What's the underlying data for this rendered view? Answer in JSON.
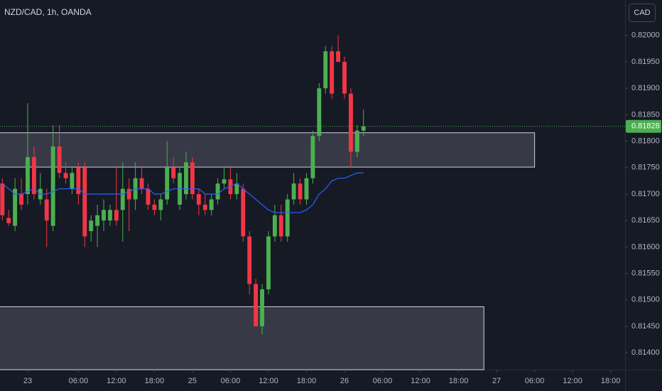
{
  "chart_data": {
    "type": "candlestick",
    "title": "NZD/CAD, 1h, OANDA",
    "currency": "CAD",
    "x": [
      -4,
      -3,
      -2,
      -1,
      0,
      1,
      2,
      3,
      4,
      5,
      6,
      7,
      8,
      9,
      10,
      11,
      12,
      13,
      14,
      15,
      16,
      17,
      18,
      19,
      20,
      21,
      22,
      23,
      24,
      25,
      26,
      27,
      28,
      29,
      30,
      31,
      32,
      33,
      34,
      35,
      36,
      37,
      38,
      39,
      40,
      41,
      42,
      43,
      44,
      45,
      46,
      47,
      48,
      49,
      50,
      51,
      52,
      53
    ],
    "open": [
      0.8172,
      0.81655,
      0.8164,
      0.817,
      0.817,
      0.8177,
      0.8169,
      0.8169,
      0.8164,
      0.8179,
      0.8174,
      0.8171,
      0.8175,
      0.8175,
      0.8163,
      0.8164,
      0.8165,
      0.8165,
      0.8167,
      0.8167,
      0.8171,
      0.8169,
      0.8173,
      0.8171,
      0.8168,
      0.8167,
      0.8169,
      0.8175,
      0.8168,
      0.817,
      0.8176,
      0.817,
      0.8168,
      0.8167,
      0.8169,
      0.8172,
      0.81728,
      0.817,
      0.8171,
      0.8162,
      0.8153,
      0.8145,
      0.8152,
      0.8162,
      0.8166,
      0.8162,
      0.8169,
      0.8172,
      0.8169,
      0.8173,
      0.8181,
      0.819,
      0.8197,
      0.8197,
      0.8195,
      0.8189,
      0.8178,
      0.8182
    ],
    "high": [
      0.8173,
      0.8167,
      0.8173,
      0.8173,
      0.81872,
      0.8179,
      0.8174,
      0.8171,
      0.8183,
      0.8183,
      0.8176,
      0.8175,
      0.8176,
      0.8176,
      0.8166,
      0.8168,
      0.8169,
      0.8168,
      0.8175,
      0.8176,
      0.8173,
      0.8176,
      0.8175,
      0.8172,
      0.8169,
      0.817,
      0.818,
      0.8177,
      0.8175,
      0.8178,
      0.8177,
      0.8171,
      0.817,
      0.817,
      0.8173,
      0.8175,
      0.8175,
      0.8174,
      0.8172,
      0.8163,
      0.8154,
      0.8153,
      0.8163,
      0.8168,
      0.8168,
      0.817,
      0.8174,
      0.8173,
      0.8174,
      0.8182,
      0.8191,
      0.8198,
      0.8198,
      0.82,
      0.8196,
      0.819,
      0.8183,
      0.8186
    ],
    "low": [
      0.8165,
      0.8164,
      0.8163,
      0.8167,
      0.8168,
      0.8169,
      0.8168,
      0.816,
      0.8163,
      0.8173,
      0.8172,
      0.817,
      0.8168,
      0.816,
      0.8161,
      0.816,
      0.8163,
      0.8164,
      0.8164,
      0.8161,
      0.8163,
      0.8167,
      0.817,
      0.8167,
      0.8166,
      0.8165,
      0.8168,
      0.8172,
      0.8167,
      0.8169,
      0.8169,
      0.8166,
      0.8166,
      0.8166,
      0.8168,
      0.8171,
      0.8169,
      0.8169,
      0.8161,
      0.8151,
      0.8145,
      0.81435,
      0.8151,
      0.8161,
      0.8161,
      0.8161,
      0.8168,
      0.8168,
      0.8168,
      0.8172,
      0.818,
      0.8189,
      0.8188,
      0.8195,
      0.8188,
      0.8175,
      0.8177,
      0.8181
    ],
    "close": [
      0.8166,
      0.81645,
      0.8171,
      0.8168,
      0.8177,
      0.817,
      0.8171,
      0.8165,
      0.8179,
      0.8174,
      0.8173,
      0.8174,
      0.817,
      0.8162,
      0.8165,
      0.8166,
      0.8167,
      0.8167,
      0.8165,
      0.8171,
      0.8169,
      0.8173,
      0.8171,
      0.8168,
      0.8167,
      0.8169,
      0.8175,
      0.8173,
      0.8174,
      0.8176,
      0.817,
      0.8168,
      0.8167,
      0.8169,
      0.8172,
      0.81728,
      0.817,
      0.8172,
      0.8162,
      0.8153,
      0.8145,
      0.8152,
      0.8162,
      0.8166,
      0.8162,
      0.8169,
      0.8172,
      0.8169,
      0.8173,
      0.8181,
      0.819,
      0.8197,
      0.8189,
      0.8195,
      0.8189,
      0.8178,
      0.8182,
      0.81828
    ],
    "ma": [
      0.8172,
      0.8171,
      0.817,
      0.817,
      0.81705,
      0.8171,
      0.817,
      0.817,
      0.81705,
      0.8171,
      0.8171,
      0.8171,
      0.8171,
      0.817,
      0.817,
      0.817,
      0.817,
      0.817,
      0.817,
      0.817,
      0.81705,
      0.8171,
      0.8171,
      0.8171,
      0.817,
      0.817,
      0.81705,
      0.8171,
      0.8171,
      0.8171,
      0.8171,
      0.8171,
      0.817,
      0.817,
      0.817,
      0.8171,
      0.81715,
      0.8172,
      0.8171,
      0.817,
      0.8169,
      0.8168,
      0.8167,
      0.81665,
      0.81665,
      0.81665,
      0.81665,
      0.81665,
      0.8167,
      0.8168,
      0.817,
      0.8171,
      0.81725,
      0.8173,
      0.8173,
      0.81735,
      0.8174,
      0.8174
    ],
    "up_color": "#4caf50",
    "down_color": "#f23645",
    "ma_color": "#2962ff",
    "zones": [
      {
        "top": 0.81816,
        "bottom": 0.81751,
        "x_end": 80
      },
      {
        "top": 0.81487,
        "bottom": 0.81368,
        "x_end": 72
      }
    ],
    "last_price": {
      "values": [
        0.81828
      ],
      "value_labels": [
        "0.81828"
      ]
    },
    "xlim": [
      -4.37,
      94.28
    ],
    "ylim": [
      0.81368,
      0.82067
    ],
    "xticks": [
      {
        "value": 0,
        "label": "23"
      },
      {
        "value": 8,
        "label": "06:00"
      },
      {
        "value": 14,
        "label": "12:00"
      },
      {
        "value": 20,
        "label": "18:00"
      },
      {
        "value": 26,
        "label": "25"
      },
      {
        "value": 32,
        "label": "06:00"
      },
      {
        "value": 38,
        "label": "12:00"
      },
      {
        "value": 44,
        "label": "18:00"
      },
      {
        "value": 50,
        "label": "26"
      },
      {
        "value": 56,
        "label": "06:00"
      },
      {
        "value": 62,
        "label": "12:00"
      },
      {
        "value": 68,
        "label": "18:00"
      },
      {
        "value": 74,
        "label": "27"
      },
      {
        "value": 80,
        "label": "06:00"
      },
      {
        "value": 86,
        "label": "12:00"
      },
      {
        "value": 92,
        "label": "18:00"
      }
    ],
    "yticks": [
      {
        "value": 0.82,
        "label": "0.82000"
      },
      {
        "value": 0.8195,
        "label": "0.81950"
      },
      {
        "value": 0.819,
        "label": "0.81900"
      },
      {
        "value": 0.8185,
        "label": "0.81850"
      },
      {
        "value": 0.818,
        "label": "0.81800"
      },
      {
        "value": 0.8175,
        "label": "0.81750"
      },
      {
        "value": 0.817,
        "label": "0.81700"
      },
      {
        "value": 0.8165,
        "label": "0.81650"
      },
      {
        "value": 0.816,
        "label": "0.81600"
      },
      {
        "value": 0.8155,
        "label": "0.81550"
      },
      {
        "value": 0.815,
        "label": "0.81500"
      },
      {
        "value": 0.8145,
        "label": "0.81450"
      },
      {
        "value": 0.814,
        "label": "0.81400"
      }
    ]
  }
}
